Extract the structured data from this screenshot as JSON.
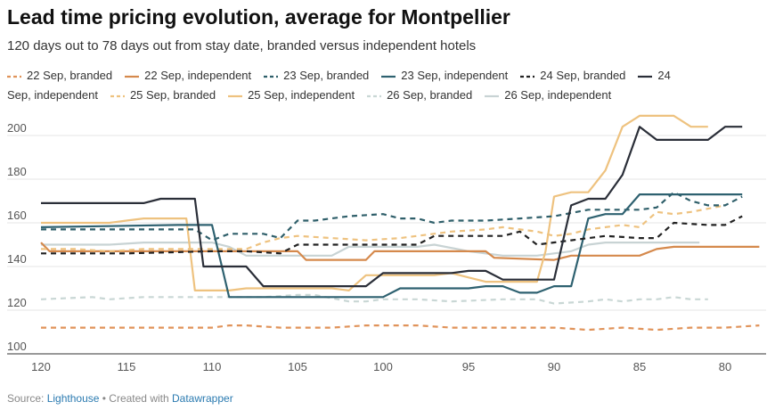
{
  "chart_data": {
    "type": "line",
    "title": "Lead time pricing evolution, average for Montpellier",
    "subtitle": "120 days out to 78 days out from stay date, branded versus independent hotels",
    "xlabel": "",
    "ylabel": "",
    "xlim": [
      120,
      78
    ],
    "ylim": [
      100,
      210
    ],
    "x_ticks": [
      120,
      115,
      110,
      105,
      100,
      95,
      90,
      85,
      80
    ],
    "y_ticks": [
      100,
      120,
      140,
      160,
      180,
      200
    ],
    "legend_position": "top",
    "series": [
      {
        "name": "22 Sep, branded",
        "color": "#e0935a",
        "dash": "dashed",
        "x": [
          120,
          117,
          112,
          110,
          109,
          108,
          106,
          103,
          101,
          98,
          96,
          93,
          91,
          90,
          88,
          86,
          84,
          82,
          80,
          78
        ],
        "y": [
          112,
          112,
          112,
          112,
          113,
          113,
          112,
          112,
          113,
          113,
          112,
          112,
          112,
          112,
          111,
          112,
          111,
          112,
          112,
          113
        ]
      },
      {
        "name": "22 Sep, independent",
        "color": "#d5894c",
        "dash": "solid",
        "x": [
          120,
          119.5,
          115,
          110,
          109,
          105,
          104.5,
          101,
          100.5,
          97,
          96.5,
          94,
          93.5,
          90,
          89,
          85,
          84,
          83,
          78
        ],
        "y": [
          151,
          147,
          147,
          147,
          147,
          147,
          143,
          143,
          147,
          147,
          147,
          147,
          144,
          143,
          145,
          145,
          148,
          149,
          149
        ]
      },
      {
        "name": "23 Sep, branded",
        "color": "#2f5f6a",
        "dash": "dashed",
        "x": [
          120,
          117,
          114,
          111,
          110,
          109,
          107,
          106,
          105,
          104,
          102,
          100,
          99,
          98,
          97,
          96,
          94,
          92,
          90,
          88,
          87,
          85,
          84,
          83,
          82,
          81,
          80,
          79
        ],
        "y": [
          157,
          157,
          157,
          157,
          152,
          155,
          155,
          153,
          161,
          161,
          163,
          164,
          162,
          162,
          160,
          161,
          161,
          162,
          163,
          166,
          166,
          166,
          167,
          174,
          170,
          168,
          168,
          172
        ]
      },
      {
        "name": "23 Sep, independent",
        "color": "#2e6170",
        "dash": "solid",
        "x": [
          120,
          112,
          110,
          109,
          108,
          105,
          104,
          101,
          100,
          99,
          98,
          95,
          94,
          93,
          92,
          91,
          90,
          89,
          88,
          87,
          86,
          85,
          84,
          83,
          82,
          79
        ],
        "y": [
          158,
          159,
          159,
          126,
          126,
          126,
          126,
          126,
          126,
          130,
          130,
          130,
          131,
          131,
          128,
          128,
          131,
          131,
          162,
          164,
          164,
          173,
          173,
          173,
          173,
          173
        ]
      },
      {
        "name": "24 Sep, branded",
        "color": "#222222",
        "dash": "dashed",
        "x": [
          120,
          115,
          110,
          108,
          106,
          105,
          103,
          100,
          98,
          97,
          95,
          93,
          92,
          91,
          89,
          87,
          85,
          84,
          83,
          81,
          80,
          79
        ],
        "y": [
          146,
          146,
          147,
          147,
          146,
          150,
          150,
          150,
          150,
          154,
          154,
          154,
          156,
          150,
          152,
          154,
          153,
          153,
          160,
          159,
          159,
          163
        ]
      },
      {
        "name": "24 Sep, independent",
        "color": "#2a2e38",
        "dash": "solid",
        "x": [
          120,
          114,
          113,
          111,
          110.5,
          108,
          107,
          104,
          102,
          101,
          100,
          96,
          95,
          94,
          93,
          92,
          90,
          89,
          88,
          87,
          86,
          85,
          84,
          83,
          81,
          80,
          79
        ],
        "y": [
          169,
          169,
          171,
          171,
          140,
          140,
          131,
          131,
          131,
          131,
          137,
          137,
          138,
          138,
          134,
          134,
          134,
          168,
          171,
          171,
          182,
          204,
          198,
          198,
          198,
          204,
          204
        ]
      },
      {
        "name": "25 Sep, branded",
        "color": "#eec27f",
        "dash": "dashed",
        "x": [
          120,
          118,
          116,
          114,
          112,
          110,
          108,
          107,
          106,
          105,
          103,
          101,
          99,
          96,
          94,
          93,
          92,
          91,
          90,
          89,
          88,
          87,
          86,
          85,
          84,
          83,
          82,
          80
        ],
        "y": [
          148,
          148,
          147,
          148,
          148,
          148,
          148,
          151,
          153,
          154,
          153,
          152,
          153,
          156,
          157,
          158,
          157,
          156,
          154,
          155,
          157,
          158,
          159,
          158,
          165,
          164,
          165,
          168
        ]
      },
      {
        "name": "25 Sep, independent",
        "color": "#eec27f",
        "dash": "solid",
        "x": [
          120,
          116,
          115,
          114,
          111.5,
          111,
          109,
          108,
          104,
          103,
          102,
          101,
          97,
          96,
          95,
          94,
          91,
          90.5,
          90,
          89,
          88,
          87,
          86,
          85,
          84,
          83,
          82,
          81
        ],
        "y": [
          160,
          160,
          161,
          162,
          162,
          129,
          129,
          130,
          130,
          130,
          129,
          136,
          136,
          137,
          135,
          133,
          133,
          147,
          172,
          174,
          174,
          184,
          204,
          209,
          209,
          209,
          204,
          204
        ]
      },
      {
        "name": "26 Sep, branded",
        "color": "#c9d7d5",
        "dash": "dashed",
        "x": [
          120,
          117,
          116,
          114,
          112,
          110,
          109,
          107,
          105,
          104,
          102,
          101,
          100,
          98,
          96,
          93,
          91,
          90,
          88,
          87,
          86,
          85,
          84,
          83,
          82,
          81
        ],
        "y": [
          125,
          126,
          125,
          126,
          126,
          126,
          126,
          126,
          127,
          127,
          124,
          124,
          125,
          125,
          124,
          125,
          125,
          123,
          124,
          125,
          124,
          125,
          125,
          126,
          125,
          125
        ]
      },
      {
        "name": "26 Sep, independent",
        "color": "#c8d3d4",
        "dash": "solid",
        "x": [
          120,
          116,
          114,
          110,
          109,
          108,
          106,
          104,
          103,
          102,
          100,
          98,
          97,
          95,
          93,
          92,
          91,
          90,
          89,
          88,
          87,
          85,
          83,
          82,
          81.5
        ],
        "y": [
          150,
          150,
          151,
          151,
          149,
          145,
          145,
          145,
          145,
          149,
          149,
          149,
          150,
          147,
          145,
          145,
          145,
          146,
          147,
          150,
          151,
          151,
          151,
          151,
          151
        ]
      }
    ]
  },
  "footer": {
    "source_label": "Source: ",
    "source_link": "Lighthouse",
    "separator": " • Created with ",
    "tool_link": "Datawrapper"
  }
}
